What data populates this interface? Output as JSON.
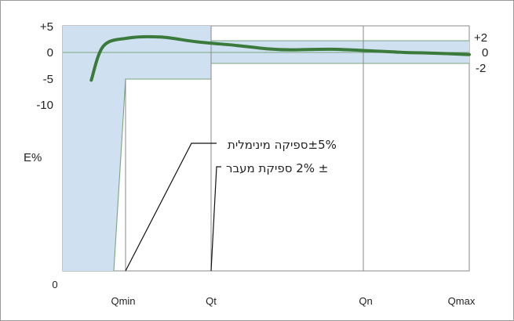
{
  "chart_data": {
    "type": "line",
    "ylabel": "E%",
    "origin_label": "0",
    "x_tick_labels": [
      "Qmin",
      "Qt",
      "Qn",
      "Qmax"
    ],
    "y_left": {
      "tick_labels": [
        "+5",
        "0",
        "-5",
        "-10"
      ],
      "values": [
        5,
        0,
        -5,
        -10
      ]
    },
    "y_right": {
      "tick_labels": [
        "+2",
        "0",
        "-2"
      ],
      "values": [
        2,
        0,
        -2
      ]
    },
    "tolerance_bands": [
      {
        "label": "±5%ספיקה מינימלית",
        "range": [
          "0",
          "Qt"
        ],
        "lower": -5,
        "upper": 5,
        "color": "#cfe0f0"
      },
      {
        "label": "± 2% ספיקת מעבר",
        "range": [
          "Qt",
          "Qmax"
        ],
        "lower": -2,
        "upper": 2,
        "color": "#cfe0f0"
      }
    ],
    "series": [
      {
        "color": "#3a7a3a",
        "x": [
          0.07,
          0.1,
          0.16,
          0.24,
          0.33,
          0.43,
          0.5,
          0.56,
          0.66,
          0.76,
          0.84,
          0.9,
          1.0
        ],
        "y": [
          -5.2,
          1.2,
          2.7,
          2.9,
          2.0,
          1.3,
          0.7,
          0.5,
          0.6,
          0.3,
          0.0,
          -0.1,
          -0.4
        ]
      }
    ]
  }
}
